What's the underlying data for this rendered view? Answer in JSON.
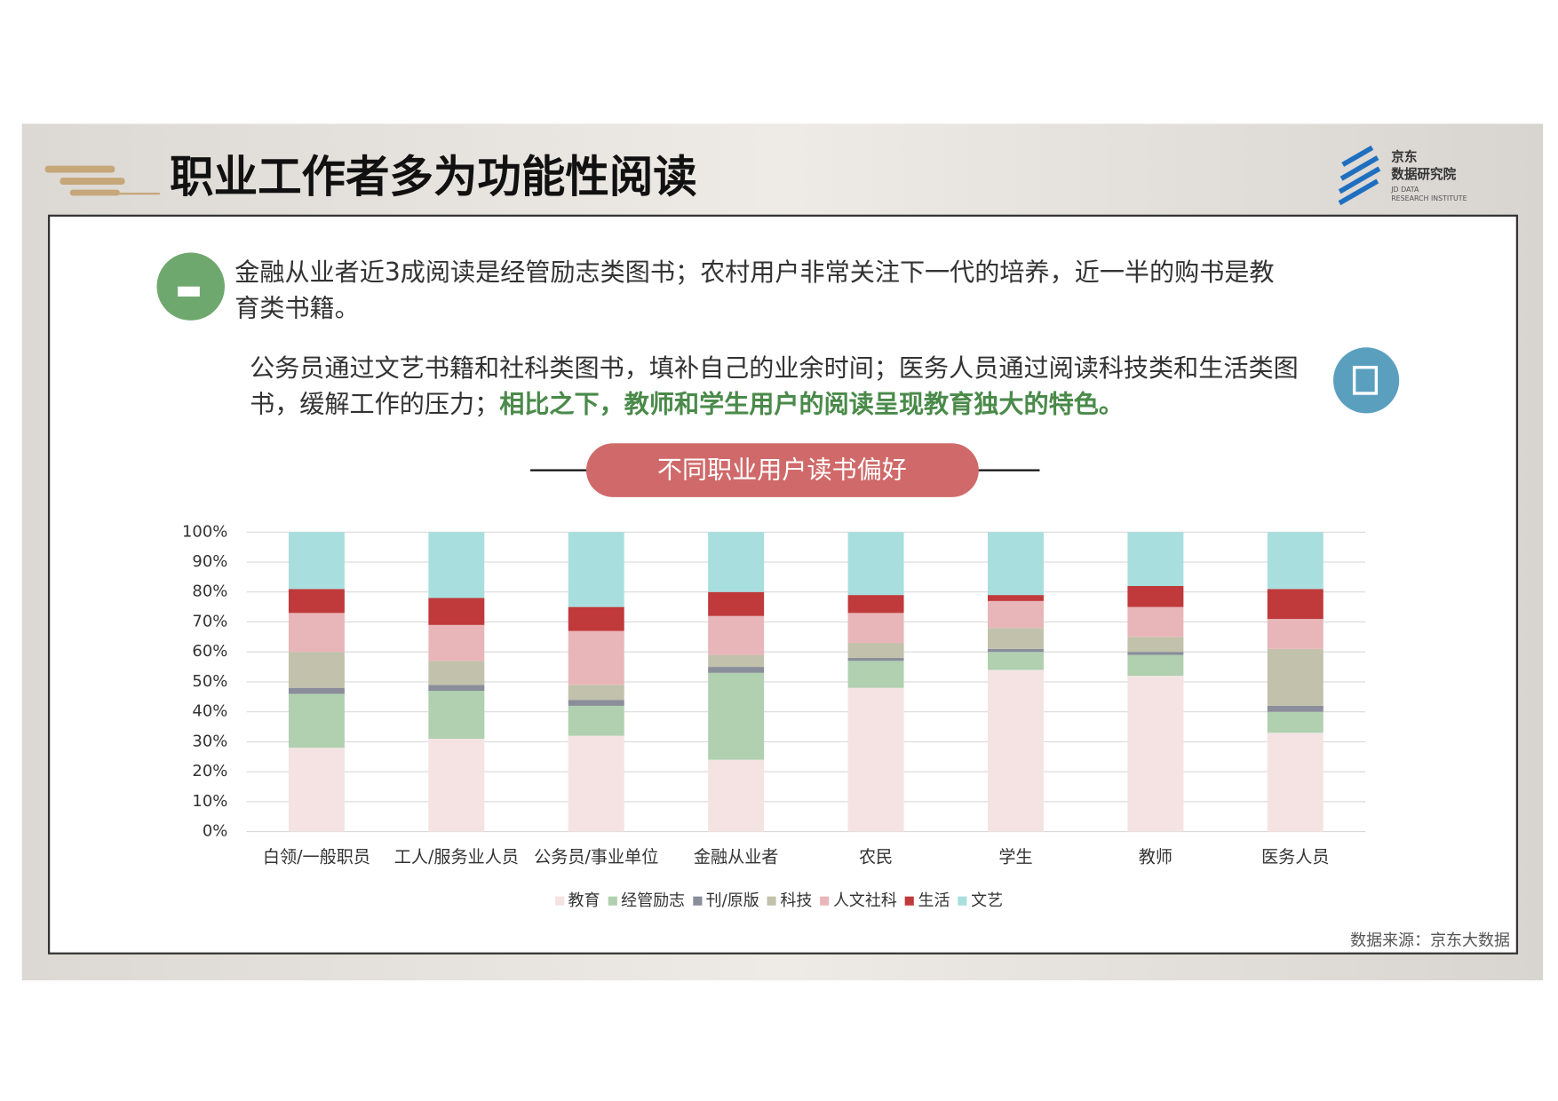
{
  "header": {
    "title": "职业工作者多为功能性阅读"
  },
  "logo": {
    "cn1": "京东",
    "cn2": "数据研究院",
    "en1": "JD DATA",
    "en2": "RESEARCH INSTITUTE"
  },
  "para1": {
    "lines": [
      "金融从业者近3成阅读是经管励志类图书；农村用户非常关注下一代的培养，近一半的购书是教",
      "育类书籍。"
    ]
  },
  "para2": {
    "line1": "公务员通过文艺书籍和社科类图书，填补自己的业余时间；医务人员通过阅读科技类和生活类图",
    "line2": "书，缓解工作的压力；",
    "highlight": "相比之下，教师和学生用户的阅读呈现教育独大的特色。"
  },
  "chart_data": {
    "type": "stacked_bar",
    "title": "不同职业用户读书偏好",
    "categories": [
      "白领/一般职员",
      "工人/服务业人员",
      "公务员/事业单位",
      "金融从业者",
      "农民",
      "学生",
      "教师",
      "医务人员"
    ],
    "series": [
      {
        "name": "教育",
        "color": "#f5e3e3",
        "values": [
          28,
          31,
          32,
          24,
          48,
          54,
          52,
          33
        ]
      },
      {
        "name": "经管励志",
        "color": "#b0d0b0",
        "values": [
          18,
          16,
          10,
          29,
          9,
          6,
          7,
          7
        ]
      },
      {
        "name": "刊/原版",
        "color": "#8a8d9a",
        "values": [
          2,
          2,
          2,
          2,
          1,
          1,
          1,
          2
        ]
      },
      {
        "name": "科技",
        "color": "#c2c1ab",
        "values": [
          12,
          8,
          5,
          4,
          5,
          7,
          5,
          19
        ]
      },
      {
        "name": "人文社科",
        "color": "#e8b6b8",
        "values": [
          13,
          12,
          18,
          13,
          10,
          9,
          10,
          10
        ]
      },
      {
        "name": "生活",
        "color": "#c0393b",
        "values": [
          8,
          9,
          8,
          8,
          6,
          2,
          7,
          10
        ]
      },
      {
        "name": "文艺",
        "color": "#a8dfde",
        "values": [
          19,
          22,
          25,
          20,
          21,
          21,
          18,
          19
        ]
      }
    ],
    "ylim": [
      0,
      100
    ],
    "yticks": [
      {
        "value": 0,
        "label": "0%"
      },
      {
        "value": 10,
        "label": "10%"
      },
      {
        "value": 20,
        "label": "20%"
      },
      {
        "value": 30,
        "label": "30%"
      },
      {
        "value": 40,
        "label": "40%"
      },
      {
        "value": 50,
        "label": "50%"
      },
      {
        "value": 60,
        "label": "60%"
      },
      {
        "value": 70,
        "label": "70%"
      },
      {
        "value": 80,
        "label": "80%"
      },
      {
        "value": 90,
        "label": "90%"
      },
      {
        "value": 100,
        "label": "100%"
      }
    ],
    "grid": true
  },
  "source": "数据来源：京东大数据"
}
